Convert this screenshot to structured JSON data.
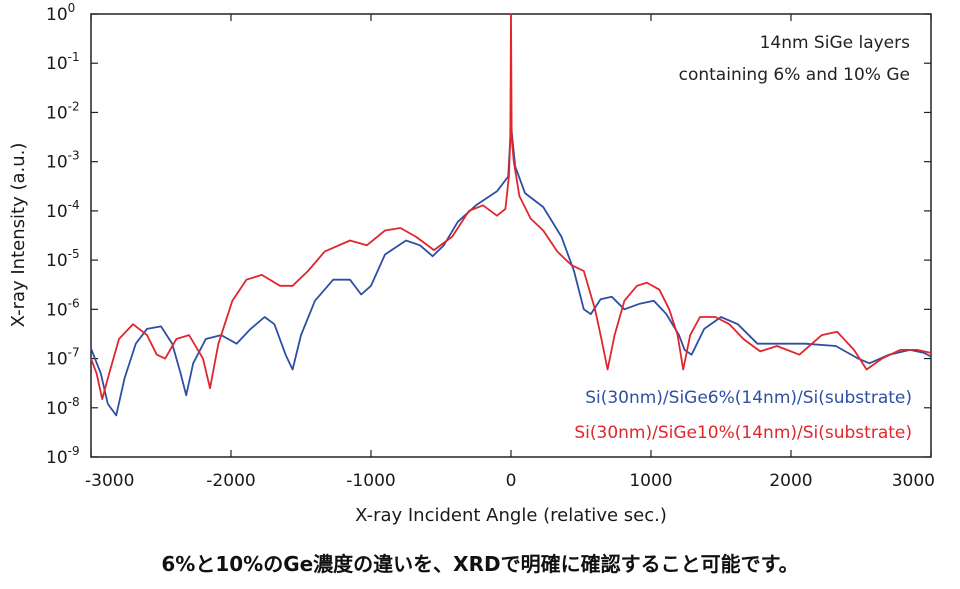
{
  "chart_data": {
    "type": "line",
    "xlabel": "X-ray Incident Angle (relative sec.)",
    "ylabel": "X-ray Intensity (a.u.)",
    "xlim": [
      -3000,
      3000
    ],
    "ylim_log10": [
      -9,
      0
    ],
    "yscale": "log",
    "grid": false,
    "legend_placement": "bottom-right",
    "x_ticks": [
      -3000,
      -2000,
      -1000,
      0,
      1000,
      2000,
      3000
    ],
    "x_tick_labels": [
      "-3000",
      "-2000",
      "-1000",
      "0",
      "1000",
      "2000",
      "3000"
    ],
    "y_ticks_log10": [
      0,
      -1,
      -2,
      -3,
      -4,
      -5,
      -6,
      -7,
      -8,
      -9
    ],
    "y_tick_labels": [
      {
        "base": "10",
        "exp": "0"
      },
      {
        "base": "10",
        "exp": "-1"
      },
      {
        "base": "10",
        "exp": "-2"
      },
      {
        "base": "10",
        "exp": "-3"
      },
      {
        "base": "10",
        "exp": "-4"
      },
      {
        "base": "10",
        "exp": "-5"
      },
      {
        "base": "10",
        "exp": "-6"
      },
      {
        "base": "10",
        "exp": "-7"
      },
      {
        "base": "10",
        "exp": "-8"
      },
      {
        "base": "10",
        "exp": "-9"
      }
    ],
    "annotations": [
      "14nm SiGe layers",
      "containing 6% and 10% Ge"
    ],
    "series": [
      {
        "name": "Si(30nm)/SiGe6%(14nm)/Si(substrate)",
        "color": "#2e4fa3",
        "points": [
          [
            -3000,
            1.6e-07
          ],
          [
            -2930,
            5e-08
          ],
          [
            -2880,
            1.2e-08
          ],
          [
            -2820,
            7e-09
          ],
          [
            -2760,
            4e-08
          ],
          [
            -2680,
            2e-07
          ],
          [
            -2600,
            4e-07
          ],
          [
            -2500,
            4.5e-07
          ],
          [
            -2420,
            2e-07
          ],
          [
            -2360,
            5e-08
          ],
          [
            -2320,
            1.8e-08
          ],
          [
            -2270,
            8e-08
          ],
          [
            -2180,
            2.5e-07
          ],
          [
            -2070,
            3e-07
          ],
          [
            -1960,
            2e-07
          ],
          [
            -1860,
            4e-07
          ],
          [
            -1760,
            7e-07
          ],
          [
            -1690,
            5e-07
          ],
          [
            -1610,
            1.2e-07
          ],
          [
            -1560,
            6e-08
          ],
          [
            -1500,
            3e-07
          ],
          [
            -1400,
            1.5e-06
          ],
          [
            -1270,
            4e-06
          ],
          [
            -1150,
            4e-06
          ],
          [
            -1070,
            2e-06
          ],
          [
            -1000,
            3e-06
          ],
          [
            -900,
            1.3e-05
          ],
          [
            -750,
            2.5e-05
          ],
          [
            -650,
            2e-05
          ],
          [
            -560,
            1.2e-05
          ],
          [
            -480,
            2e-05
          ],
          [
            -380,
            6e-05
          ],
          [
            -250,
            0.00013
          ],
          [
            -100,
            0.00025
          ],
          [
            -20,
            0.0005
          ],
          [
            -5,
            0.003
          ],
          [
            0,
            0.01
          ],
          [
            5,
            0.004
          ],
          [
            30,
            0.0008
          ],
          [
            100,
            0.00023
          ],
          [
            230,
            0.00012
          ],
          [
            360,
            3e-05
          ],
          [
            450,
            6e-06
          ],
          [
            520,
            1e-06
          ],
          [
            570,
            8e-07
          ],
          [
            640,
            1.6e-06
          ],
          [
            720,
            1.8e-06
          ],
          [
            810,
            1e-06
          ],
          [
            920,
            1.3e-06
          ],
          [
            1020,
            1.5e-06
          ],
          [
            1110,
            8e-07
          ],
          [
            1200,
            3e-07
          ],
          [
            1240,
            1.5e-07
          ],
          [
            1290,
            1.2e-07
          ],
          [
            1380,
            4e-07
          ],
          [
            1500,
            7e-07
          ],
          [
            1620,
            5e-07
          ],
          [
            1760,
            2e-07
          ],
          [
            1920,
            2e-07
          ],
          [
            2100,
            2e-07
          ],
          [
            2320,
            1.8e-07
          ],
          [
            2480,
            1e-07
          ],
          [
            2560,
            8e-08
          ],
          [
            2700,
            1.2e-07
          ],
          [
            2850,
            1.5e-07
          ],
          [
            2950,
            1.3e-07
          ],
          [
            3000,
            1.1e-07
          ]
        ]
      },
      {
        "name": "Si(30nm)/SiGe10%(14nm)/Si(substrate)",
        "color": "#e0262d",
        "points": [
          [
            -3000,
            1e-07
          ],
          [
            -2960,
            5e-08
          ],
          [
            -2920,
            1.5e-08
          ],
          [
            -2870,
            5e-08
          ],
          [
            -2800,
            2.5e-07
          ],
          [
            -2700,
            5e-07
          ],
          [
            -2600,
            3e-07
          ],
          [
            -2530,
            1.2e-07
          ],
          [
            -2470,
            1e-07
          ],
          [
            -2390,
            2.5e-07
          ],
          [
            -2300,
            3e-07
          ],
          [
            -2200,
            1e-07
          ],
          [
            -2150,
            2.5e-08
          ],
          [
            -2090,
            2e-07
          ],
          [
            -1990,
            1.5e-06
          ],
          [
            -1890,
            4e-06
          ],
          [
            -1780,
            5e-06
          ],
          [
            -1650,
            3e-06
          ],
          [
            -1560,
            3e-06
          ],
          [
            -1450,
            6e-06
          ],
          [
            -1330,
            1.5e-05
          ],
          [
            -1150,
            2.5e-05
          ],
          [
            -1030,
            2e-05
          ],
          [
            -900,
            4e-05
          ],
          [
            -790,
            4.5e-05
          ],
          [
            -680,
            3e-05
          ],
          [
            -550,
            1.6e-05
          ],
          [
            -420,
            3e-05
          ],
          [
            -300,
            0.0001
          ],
          [
            -200,
            0.00013
          ],
          [
            -100,
            8e-05
          ],
          [
            -40,
            0.00011
          ],
          [
            -15,
            0.0005
          ],
          [
            -5,
            0.003
          ],
          [
            0,
            1.0
          ],
          [
            5,
            0.003
          ],
          [
            20,
            0.001
          ],
          [
            60,
            0.0002
          ],
          [
            140,
            7e-05
          ],
          [
            230,
            4e-05
          ],
          [
            330,
            1.5e-05
          ],
          [
            430,
            8e-06
          ],
          [
            520,
            6e-06
          ],
          [
            600,
            1e-06
          ],
          [
            640,
            3e-07
          ],
          [
            690,
            6e-08
          ],
          [
            740,
            3e-07
          ],
          [
            810,
            1.5e-06
          ],
          [
            900,
            3e-06
          ],
          [
            970,
            3.5e-06
          ],
          [
            1060,
            2.5e-06
          ],
          [
            1130,
            1e-06
          ],
          [
            1190,
            3e-07
          ],
          [
            1230,
            6e-08
          ],
          [
            1280,
            3e-07
          ],
          [
            1350,
            7e-07
          ],
          [
            1460,
            7e-07
          ],
          [
            1560,
            5e-07
          ],
          [
            1660,
            2.5e-07
          ],
          [
            1780,
            1.4e-07
          ],
          [
            1900,
            1.8e-07
          ],
          [
            2060,
            1.2e-07
          ],
          [
            2220,
            3e-07
          ],
          [
            2330,
            3.5e-07
          ],
          [
            2450,
            1.5e-07
          ],
          [
            2540,
            6e-08
          ],
          [
            2650,
            1e-07
          ],
          [
            2780,
            1.5e-07
          ],
          [
            2900,
            1.5e-07
          ],
          [
            3000,
            1.3e-07
          ]
        ]
      }
    ]
  },
  "caption": "6%と10%のGe濃度の違いを、XRDで明確に確認すること可能です。"
}
